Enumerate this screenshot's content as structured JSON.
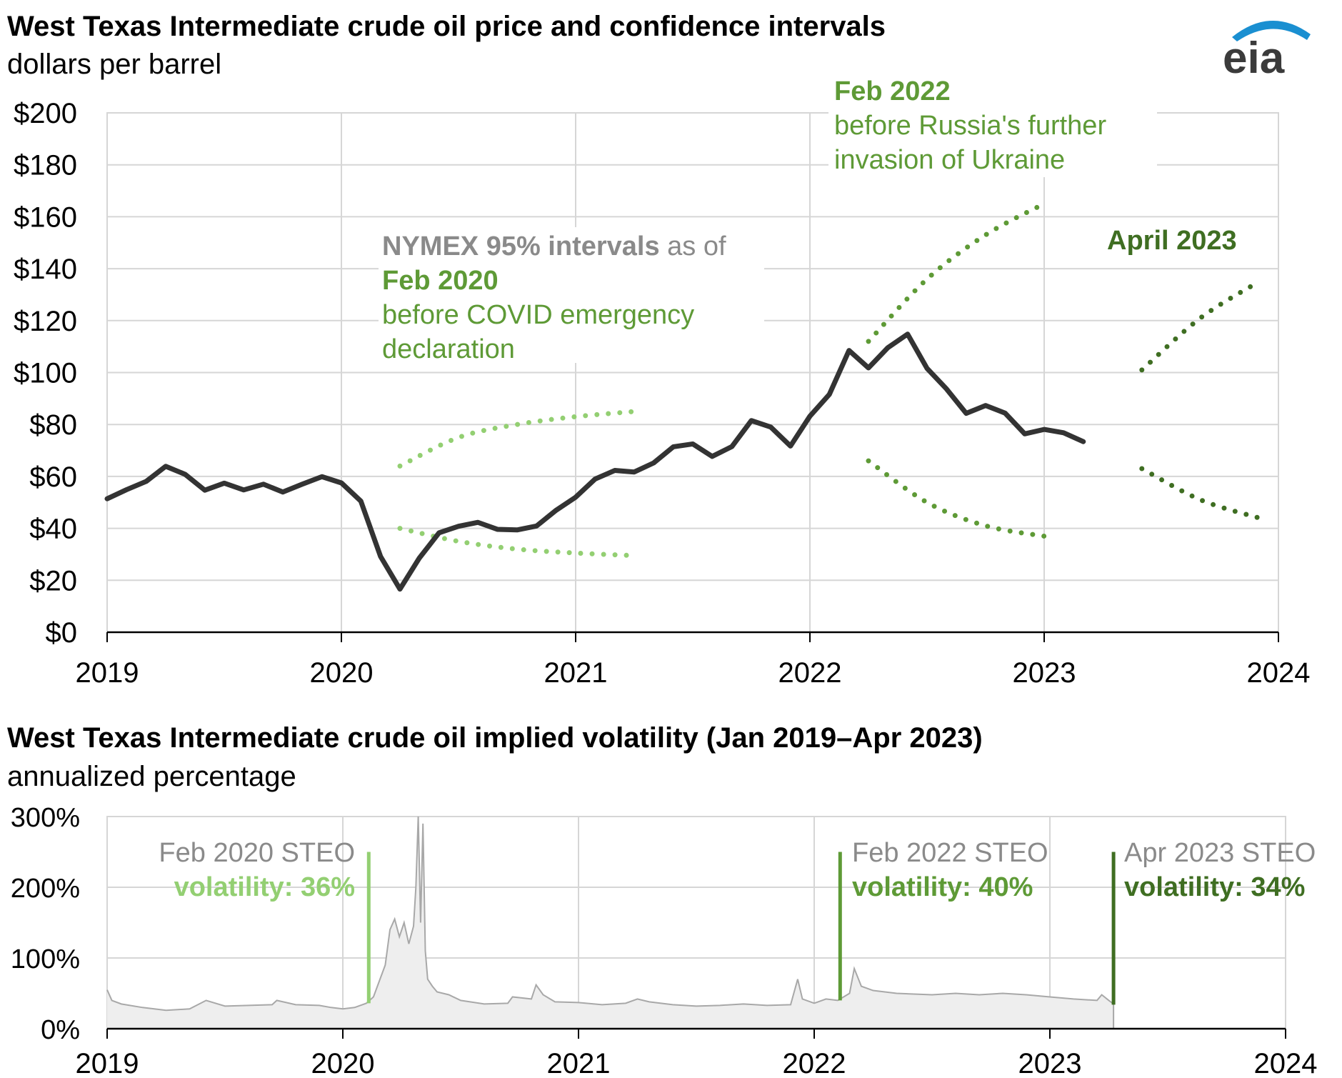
{
  "logo": {
    "text": "eia"
  },
  "colors": {
    "price_line": "#333333",
    "feb2020": "#93cf72",
    "feb2022": "#5e9a36",
    "apr2023": "#3f6e22",
    "gray_text": "#8a8a8a",
    "grid": "#d6d6d6",
    "volatility_fill": "#eeeeee",
    "volatility_line": "#a8a8a8",
    "logo_blue": "#1a8fd1"
  },
  "chart_data": [
    {
      "type": "line",
      "title": "West Texas Intermediate crude oil price and confidence intervals",
      "subtitle": "dollars per barrel",
      "ylim": [
        0,
        200
      ],
      "yticks": [
        0,
        20,
        40,
        60,
        80,
        100,
        120,
        140,
        160,
        180,
        200
      ],
      "ytick_labels": [
        "$0",
        "$20",
        "$40",
        "$60",
        "$80",
        "$100",
        "$120",
        "$140",
        "$160",
        "$180",
        "$200"
      ],
      "xlim": [
        2019,
        2024
      ],
      "xticks": [
        2019,
        2020,
        2021,
        2022,
        2023,
        2024
      ],
      "xtick_labels": [
        "2019",
        "2020",
        "2021",
        "2022",
        "2023",
        "2024"
      ],
      "grid": true,
      "series": [
        {
          "x": [
            2019.0,
            2019.083,
            2019.167,
            2019.25,
            2019.333,
            2019.417,
            2019.5,
            2019.583,
            2019.667,
            2019.75,
            2019.833,
            2019.917,
            2020.0,
            2020.083,
            2020.167,
            2020.25,
            2020.333,
            2020.417,
            2020.5,
            2020.583,
            2020.667,
            2020.75,
            2020.833,
            2020.917,
            2021.0,
            2021.083,
            2021.167,
            2021.25,
            2021.333,
            2021.417,
            2021.5,
            2021.583,
            2021.667,
            2021.75,
            2021.833,
            2021.917,
            2022.0,
            2022.083,
            2022.167,
            2022.25,
            2022.333,
            2022.417,
            2022.5,
            2022.583,
            2022.667,
            2022.75,
            2022.833,
            2022.917,
            2023.0,
            2023.083,
            2023.167
          ],
          "values": [
            51.4,
            54.9,
            58.1,
            63.9,
            60.8,
            54.7,
            57.4,
            54.8,
            57.0,
            54.0,
            57.0,
            59.9,
            57.5,
            50.5,
            29.2,
            16.6,
            28.6,
            38.3,
            40.8,
            42.3,
            39.6,
            39.4,
            40.9,
            47.0,
            52.0,
            59.0,
            62.3,
            61.7,
            65.2,
            71.4,
            72.5,
            67.7,
            71.5,
            81.5,
            79.0,
            71.7,
            83.2,
            91.6,
            108.5,
            101.8,
            109.6,
            114.8,
            101.6,
            93.7,
            84.3,
            87.3,
            84.4,
            76.4,
            78.1,
            76.8,
            73.4
          ]
        },
        {
          "name": "Feb 2020",
          "upper": {
            "x": [
              2020.25,
              2020.5,
              2020.75,
              2021.0,
              2021.25
            ],
            "values": [
              64,
              75,
              80,
              83,
              85
            ]
          },
          "lower": {
            "x": [
              2020.25,
              2020.5,
              2020.75,
              2021.0,
              2021.25
            ],
            "values": [
              40,
              35,
              32,
              30.5,
              29.5
            ]
          }
        },
        {
          "name": "Feb 2022",
          "upper": {
            "x": [
              2022.25,
              2022.5,
              2022.75,
              2023.0
            ],
            "values": [
              112,
              136,
              153,
              165
            ]
          },
          "lower": {
            "x": [
              2022.25,
              2022.5,
              2022.75,
              2023.0
            ],
            "values": [
              66,
              50,
              41,
              37
            ]
          }
        },
        {
          "name": "April 2023",
          "upper": {
            "x": [
              2023.417,
              2023.667,
              2023.917
            ],
            "values": [
              101,
              121,
              135
            ]
          },
          "lower": {
            "x": [
              2023.417,
              2023.667,
              2023.917
            ],
            "values": [
              63,
              51,
              44
            ]
          }
        }
      ],
      "annotations": {
        "nymex_bold": "NYMEX 95% intervals",
        "nymex_rest": " as of",
        "feb2020_title": "Feb 2020",
        "feb2020_line1": "before COVID emergency",
        "feb2020_line2": "declaration",
        "feb2022_title": "Feb 2022",
        "feb2022_line1": "before Russia's further",
        "feb2022_line2": "invasion of Ukraine",
        "apr2023_title": "April 2023"
      }
    },
    {
      "type": "area",
      "title": "West Texas Intermediate crude oil implied volatility (Jan 2019–Apr 2023)",
      "subtitle": "annualized percentage",
      "ylim": [
        0,
        300
      ],
      "yticks": [
        0,
        100,
        200,
        300
      ],
      "ytick_labels": [
        "0%",
        "100%",
        "200%",
        "300%"
      ],
      "xlim": [
        2019,
        2024
      ],
      "xticks": [
        2019,
        2020,
        2021,
        2022,
        2023,
        2024
      ],
      "xtick_labels": [
        "2019",
        "2020",
        "2021",
        "2022",
        "2023",
        "2024"
      ],
      "grid": true,
      "x": [
        2019.0,
        2019.02,
        2019.06,
        2019.15,
        2019.25,
        2019.35,
        2019.42,
        2019.5,
        2019.6,
        2019.7,
        2019.72,
        2019.8,
        2019.9,
        2019.95,
        2020.0,
        2020.05,
        2020.1,
        2020.13,
        2020.18,
        2020.2,
        2020.22,
        2020.24,
        2020.26,
        2020.28,
        2020.3,
        2020.31,
        2020.32,
        2020.33,
        2020.34,
        2020.35,
        2020.36,
        2020.38,
        2020.4,
        2020.45,
        2020.5,
        2020.6,
        2020.7,
        2020.72,
        2020.8,
        2020.82,
        2020.85,
        2020.9,
        2021.0,
        2021.1,
        2021.2,
        2021.25,
        2021.3,
        2021.4,
        2021.5,
        2021.6,
        2021.7,
        2021.8,
        2021.9,
        2021.93,
        2021.95,
        2022.0,
        2022.05,
        2022.1,
        2022.15,
        2022.17,
        2022.2,
        2022.25,
        2022.35,
        2022.5,
        2022.6,
        2022.7,
        2022.8,
        2022.9,
        2023.0,
        2023.1,
        2023.2,
        2023.22,
        2023.25,
        2023.27
      ],
      "values": [
        55,
        40,
        35,
        30,
        26,
        28,
        40,
        32,
        33,
        34,
        40,
        34,
        33,
        30,
        28,
        30,
        36,
        45,
        90,
        140,
        155,
        130,
        150,
        120,
        145,
        200,
        300,
        150,
        290,
        110,
        70,
        60,
        52,
        48,
        40,
        35,
        36,
        45,
        42,
        62,
        48,
        38,
        37,
        34,
        36,
        42,
        38,
        34,
        32,
        33,
        35,
        33,
        34,
        70,
        42,
        36,
        42,
        40,
        50,
        85,
        60,
        54,
        50,
        48,
        50,
        48,
        50,
        48,
        45,
        42,
        40,
        48,
        40,
        35
      ],
      "markers": [
        {
          "x": 2020.11,
          "name": "Feb 2020 STEO",
          "label_line1": "Feb 2020 STEO",
          "label_line2": "volatility: 36%",
          "value": 36
        },
        {
          "x": 2022.11,
          "name": "Feb 2022 STEO",
          "label_line1": "Feb 2022 STEO",
          "label_line2": "volatility: 40%",
          "value": 40
        },
        {
          "x": 2023.27,
          "name": "Apr 2023 STEO",
          "label_line1": "Apr 2023 STEO",
          "label_line2": "volatility: 34%",
          "value": 34
        }
      ]
    }
  ]
}
